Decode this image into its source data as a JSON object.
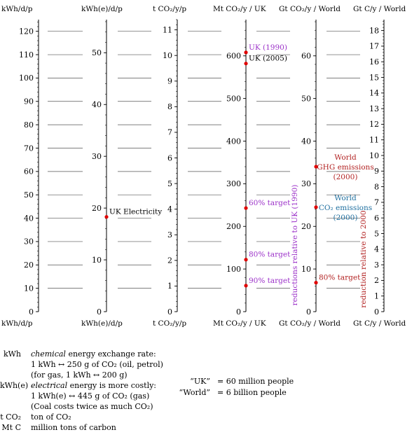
{
  "chart_data": {
    "type": "nomogram",
    "axes": [
      {
        "label": "kWh/d/p",
        "range": [
          0,
          125
        ],
        "ticks": [
          0,
          10,
          20,
          30,
          40,
          50,
          60,
          70,
          80,
          90,
          100,
          110,
          120
        ]
      },
      {
        "label": "kWh(e)/d/p",
        "range": [
          0,
          56.4
        ],
        "ticks": [
          0,
          10,
          20,
          30,
          40,
          50
        ]
      },
      {
        "label": "t CO₂/y/p",
        "range": [
          0,
          11.4
        ],
        "ticks": [
          0,
          1,
          2,
          3,
          4,
          5,
          6,
          7,
          8,
          9,
          10,
          11
        ]
      },
      {
        "label": "Mt CO₂/y / UK",
        "range": [
          0,
          685
        ],
        "ticks": [
          0,
          100,
          200,
          300,
          400,
          500,
          600
        ]
      },
      {
        "label": "Gt CO₂/y / World",
        "range": [
          0,
          68.5
        ],
        "ticks": [
          0,
          10,
          20,
          30,
          40,
          50,
          60
        ]
      },
      {
        "label": "Gt C/y / World",
        "range": [
          0,
          18.7
        ],
        "ticks": [
          0,
          1,
          2,
          3,
          4,
          5,
          6,
          7,
          8,
          9,
          10,
          11,
          12,
          13,
          14,
          15,
          16,
          17,
          18
        ]
      }
    ],
    "markers": [
      {
        "axis": 1,
        "value": 18.3,
        "label": "UK Electricity",
        "color": "#000000"
      },
      {
        "axis": 3,
        "value": 608,
        "label": "UK (1990)",
        "color": "#9b30c8"
      },
      {
        "axis": 3,
        "value": 582,
        "label": "UK (2005)",
        "color": "#000000"
      },
      {
        "axis": 3,
        "value": 243,
        "label": "60% target",
        "color": "#9b30c8"
      },
      {
        "axis": 3,
        "value": 122,
        "label": "80% target",
        "color": "#9b30c8"
      },
      {
        "axis": 3,
        "value": 61,
        "label": "90% target",
        "color": "#9b30c8"
      },
      {
        "axis": 4,
        "value": 34,
        "label_lines": [
          "World",
          "GHG emissions",
          "(2000)"
        ],
        "color": "#b22222"
      },
      {
        "axis": 4,
        "value": 24.5,
        "label_lines": [
          "World",
          "CO₂ emissions",
          "(2000)"
        ],
        "color": "#1f6f9f"
      },
      {
        "axis": 4,
        "value": 6.8,
        "label": "80% target",
        "color": "#b22222"
      }
    ],
    "vertical_notes": [
      {
        "text": "reductions relative to UK (1990)",
        "color": "#9b30c8"
      },
      {
        "text": "reduction relative to 2000",
        "color": "#b22222"
      }
    ],
    "ref_lines_value_kwh": [
      10,
      20,
      30,
      40,
      50,
      60,
      70,
      80,
      90,
      100,
      110,
      120
    ]
  },
  "legend": {
    "rows": [
      {
        "abbr": "kWh",
        "def": "chemical energy exchange rate:",
        "italic_word": "chemical"
      },
      {
        "abbr": "",
        "def": "1 kWh ↔ 250 g of CO₂ (oil, petrol)"
      },
      {
        "abbr": "",
        "def": "(for gas, 1 kWh ↔ 200 g)"
      },
      {
        "abbr": "kWh(e)",
        "def": "electrical energy is more costly:",
        "italic_word": "electrical"
      },
      {
        "abbr": "",
        "def": "1 kWh(e) ↔ 445 g of CO₂ (gas)"
      },
      {
        "abbr": "",
        "def": "(Coal costs twice as much CO₂)"
      },
      {
        "abbr": "t CO₂",
        "def": "ton of CO₂"
      },
      {
        "abbr": "Mt C",
        "def": "million tons of carbon"
      }
    ]
  },
  "population": [
    {
      "term": "“UK”",
      "def": "= 60 million people"
    },
    {
      "term": "“World”",
      "def": "= 6 billion people"
    }
  ],
  "colors": {
    "marker": "#e00000",
    "purple": "#9b30c8",
    "red": "#b22222",
    "blue": "#1f6f9f",
    "ref_line": "#555555"
  }
}
